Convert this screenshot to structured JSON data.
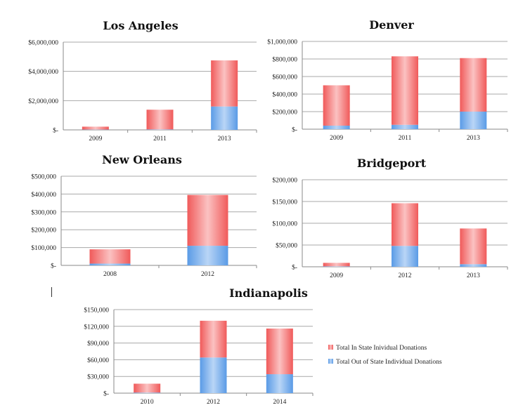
{
  "colors": {
    "in_state": "#f05a5a",
    "in_state_light": "#fbc2c2",
    "out_state": "#5a9be6",
    "out_state_light": "#b9d5f6",
    "grid": "#a8a8a8",
    "axis": "#8a8a8a"
  },
  "legend": {
    "in_state": "Total In State Inividual Donations",
    "out_state": "Total Out of State Individual Donations"
  },
  "chart_data": [
    {
      "type": "bar",
      "stacked": true,
      "title": "Los Angeles",
      "categories": [
        "2009",
        "2011",
        "2013"
      ],
      "series": [
        {
          "name": "Total Out of State Individual Donations",
          "values": [
            20000,
            30000,
            1600000
          ]
        },
        {
          "name": "Total In State Inividual Donations",
          "values": [
            200000,
            1350000,
            3150000
          ]
        }
      ],
      "ylim": [
        0,
        6000000
      ],
      "yticks": [
        0,
        2000000,
        4000000,
        6000000
      ],
      "ytick_labels": [
        "$-",
        "$2,000,000",
        "$4,000,000",
        "$6,000,000"
      ],
      "grid": true
    },
    {
      "type": "bar",
      "stacked": true,
      "title": "Denver",
      "categories": [
        "2009",
        "2011",
        "2013"
      ],
      "series": [
        {
          "name": "Total Out of State Individual Donations",
          "values": [
            40000,
            50000,
            200000
          ]
        },
        {
          "name": "Total In State Inividual Donations",
          "values": [
            460000,
            780000,
            610000
          ]
        }
      ],
      "ylim": [
        0,
        1000000
      ],
      "yticks": [
        0,
        200000,
        400000,
        600000,
        800000,
        1000000
      ],
      "ytick_labels": [
        "$-",
        "$200,000",
        "$400,000",
        "$600,000",
        "$800,000",
        "$1,000,000"
      ],
      "grid": true
    },
    {
      "type": "bar",
      "stacked": true,
      "title": "New Orleans",
      "categories": [
        "2008",
        "2012"
      ],
      "series": [
        {
          "name": "Total Out of State Individual Donations",
          "values": [
            10000,
            110000
          ]
        },
        {
          "name": "Total In State Inividual Donations",
          "values": [
            80000,
            285000
          ]
        }
      ],
      "ylim": [
        0,
        500000
      ],
      "yticks": [
        0,
        100000,
        200000,
        300000,
        400000,
        500000
      ],
      "ytick_labels": [
        "$-",
        "$100,000",
        "$200,000",
        "$300,000",
        "$400,000",
        "$500,000"
      ],
      "grid": true
    },
    {
      "type": "bar",
      "stacked": true,
      "title": "Bridgeport",
      "categories": [
        "2009",
        "2012",
        "2013"
      ],
      "series": [
        {
          "name": "Total Out of State Individual Donations",
          "values": [
            1000,
            48000,
            6000
          ]
        },
        {
          "name": "Total In State Inividual Donations",
          "values": [
            8000,
            98000,
            82000
          ]
        }
      ],
      "ylim": [
        0,
        200000
      ],
      "yticks": [
        0,
        50000,
        100000,
        150000,
        200000
      ],
      "ytick_labels": [
        "$-",
        "$50,000",
        "$100,000",
        "$150,000",
        "$200,000"
      ],
      "grid": true
    },
    {
      "type": "bar",
      "stacked": true,
      "title": "Indianapolis",
      "categories": [
        "2010",
        "2012",
        "2014"
      ],
      "series": [
        {
          "name": "Total Out of State Individual Donations",
          "values": [
            1000,
            64000,
            34000
          ]
        },
        {
          "name": "Total In State Inividual Donations",
          "values": [
            16000,
            66000,
            82000
          ]
        }
      ],
      "ylim": [
        0,
        150000
      ],
      "yticks": [
        0,
        30000,
        60000,
        90000,
        120000,
        150000
      ],
      "ytick_labels": [
        "$-",
        "$30,000",
        "$60,000",
        "$90,000",
        "$120,000",
        "$150,000"
      ],
      "grid": true,
      "legend_position": "right"
    }
  ]
}
